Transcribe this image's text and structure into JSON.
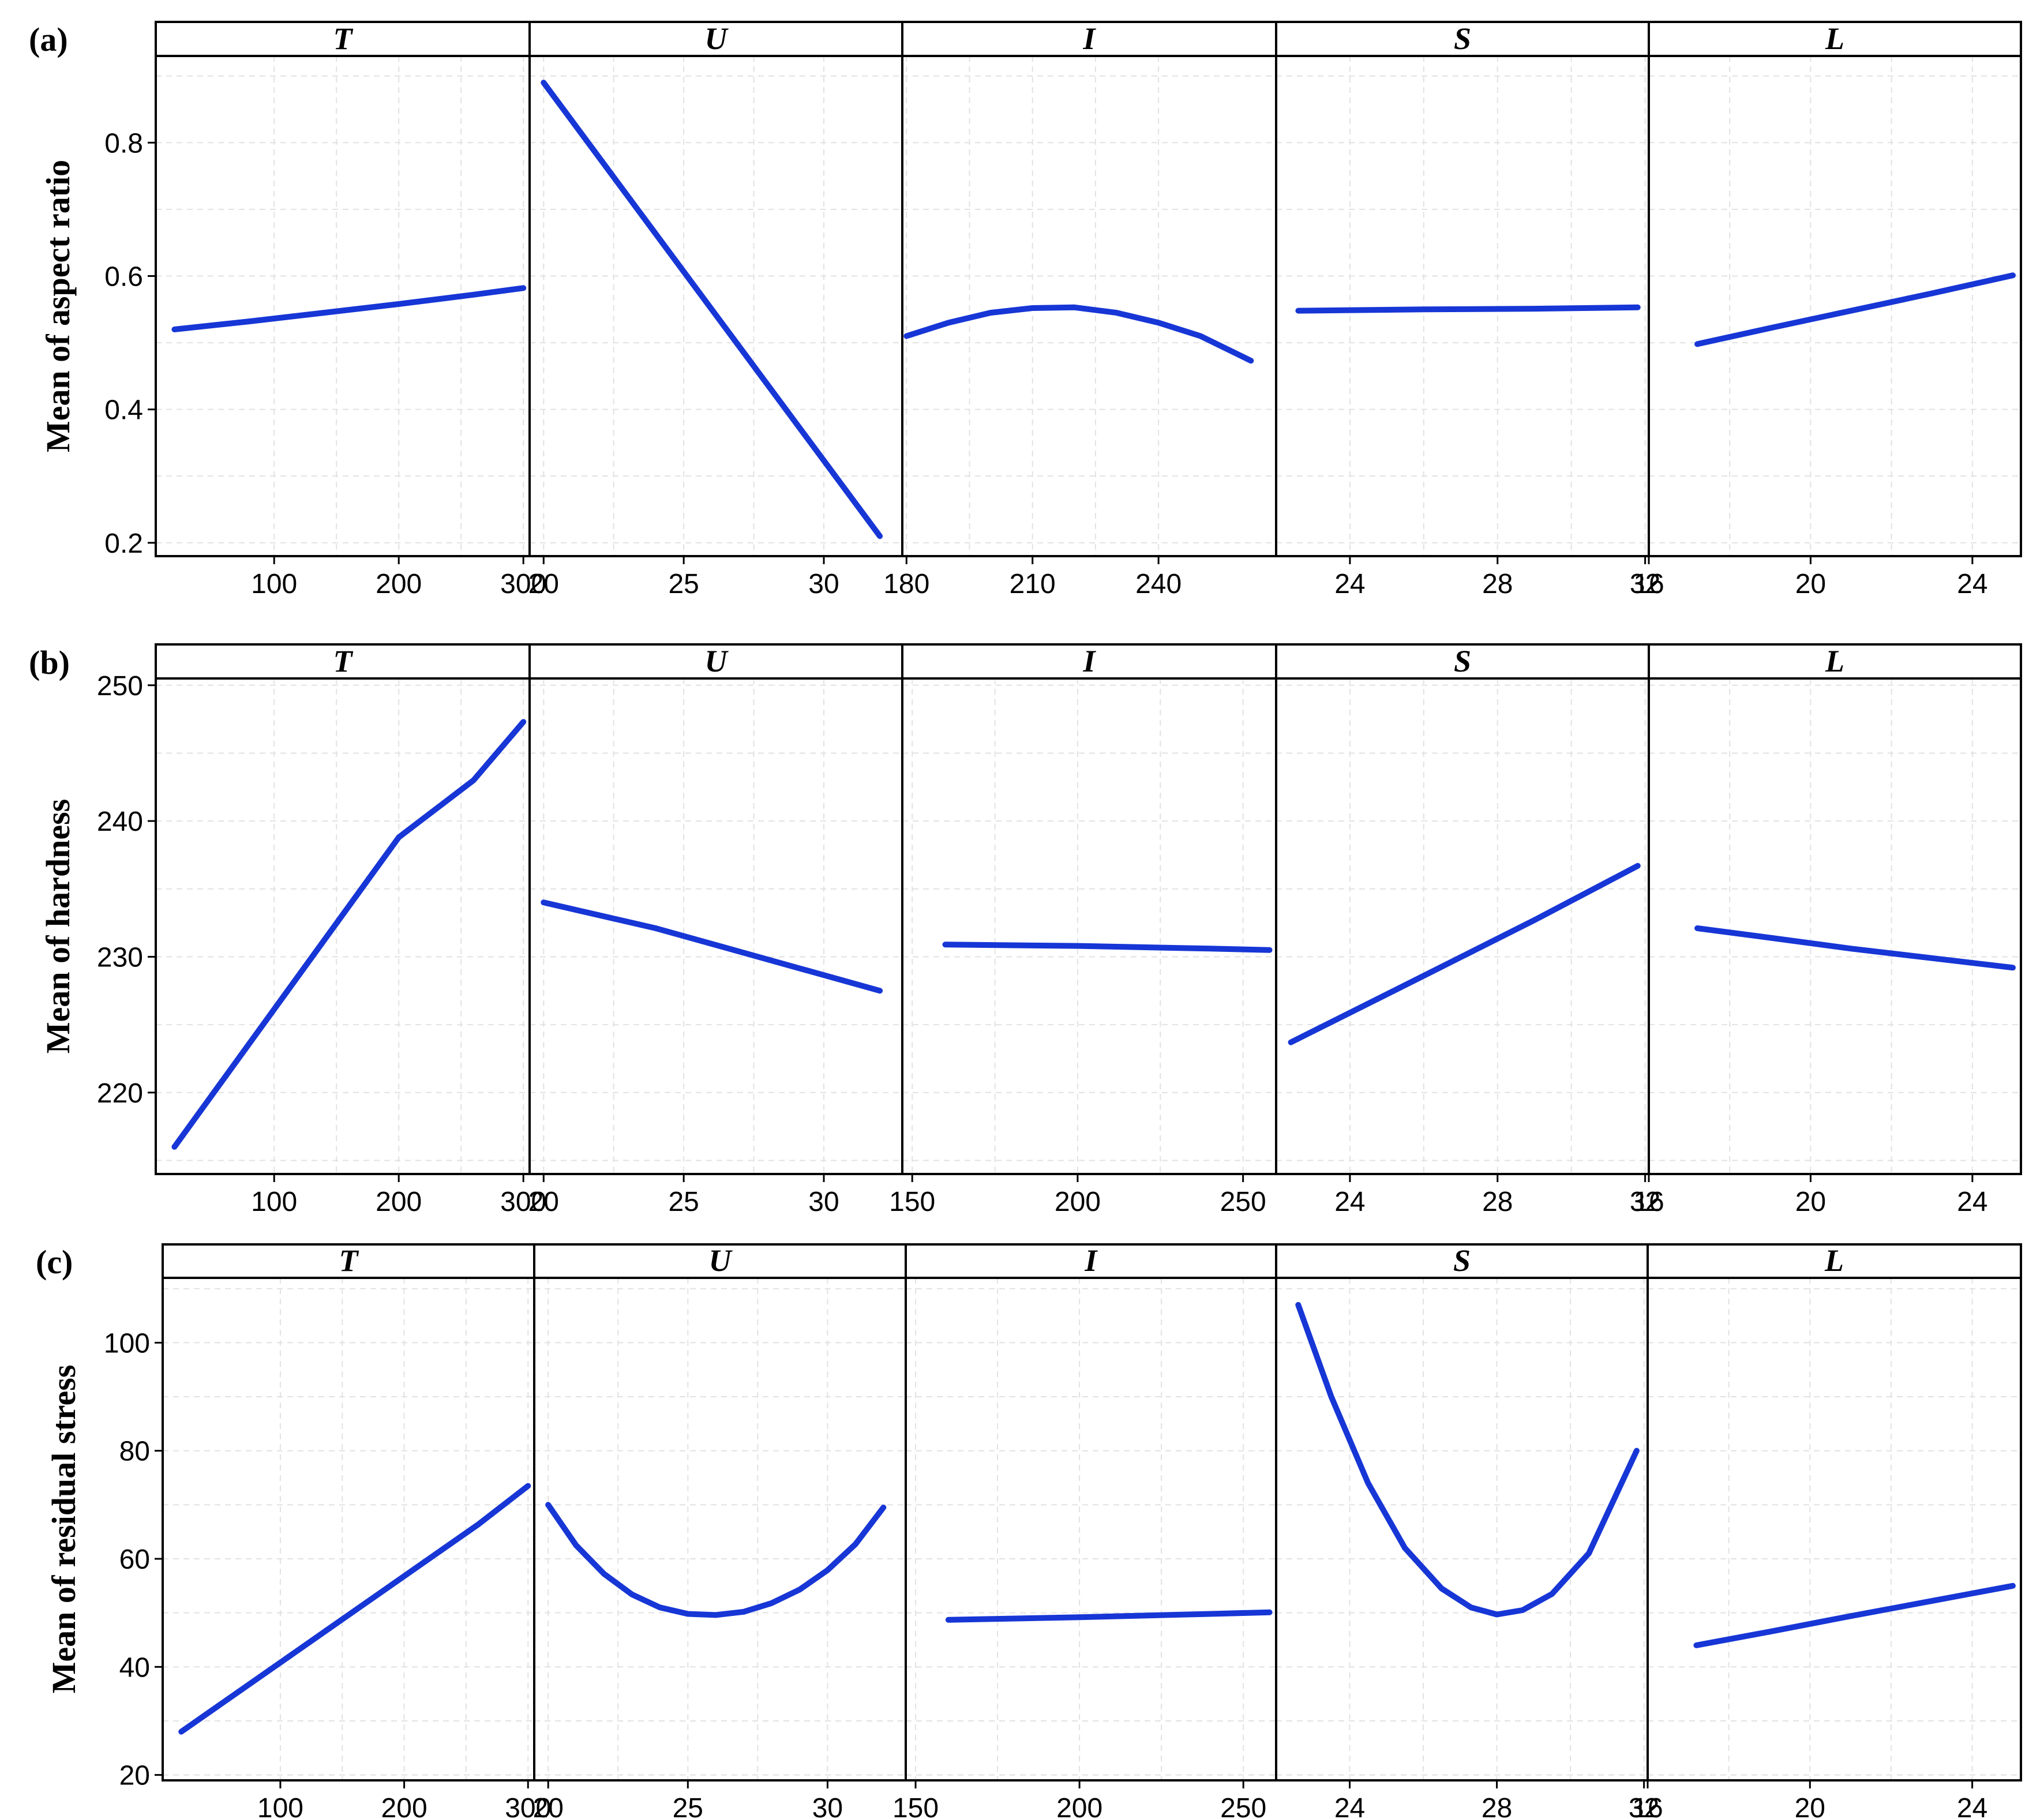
{
  "chart_data": [
    {
      "panel": "(a)",
      "type": "line",
      "ylabel": "Mean of aspect ratio",
      "ylim": [
        0.18,
        0.93
      ],
      "yticks": [
        0.2,
        0.4,
        0.6,
        0.8
      ],
      "ytick_labels": [
        "0.2",
        "0.4",
        "0.6",
        "0.8"
      ],
      "color": "#1736d6",
      "facets": [
        {
          "label": "T",
          "xlim": [
            5,
            305
          ],
          "xticks": [
            100,
            200,
            300
          ],
          "xtick_labels": [
            "100",
            "200",
            "300"
          ],
          "x": [
            20,
            80,
            140,
            200,
            260,
            300
          ],
          "y": [
            0.52,
            0.532,
            0.545,
            0.558,
            0.572,
            0.582
          ]
        },
        {
          "label": "U",
          "xlim": [
            19.5,
            32.8
          ],
          "xticks": [
            20,
            25,
            30
          ],
          "xtick_labels": [
            "20",
            "25",
            "30"
          ],
          "x": [
            20,
            23,
            26,
            29,
            32
          ],
          "y": [
            0.89,
            0.72,
            0.55,
            0.38,
            0.21
          ]
        },
        {
          "label": "I",
          "xlim": [
            179,
            268
          ],
          "xticks": [
            180,
            210,
            240
          ],
          "xtick_labels": [
            "180",
            "210",
            "240"
          ],
          "x": [
            180,
            190,
            200,
            210,
            220,
            230,
            240,
            250,
            262
          ],
          "y": [
            0.51,
            0.53,
            0.545,
            0.552,
            0.553,
            0.545,
            0.53,
            0.51,
            0.473
          ]
        },
        {
          "label": "S",
          "xlim": [
            22,
            32.1
          ],
          "xticks": [
            24,
            28,
            32
          ],
          "xtick_labels": [
            "24",
            "28",
            "32"
          ],
          "x": [
            22.6,
            26,
            29,
            31.8
          ],
          "y": [
            0.548,
            0.55,
            0.551,
            0.553
          ]
        },
        {
          "label": "L",
          "xlim": [
            16,
            25.2
          ],
          "xticks": [
            16,
            20,
            24
          ],
          "xtick_labels": [
            "16",
            "20",
            "24"
          ],
          "x": [
            17.2,
            19,
            21,
            23,
            25
          ],
          "y": [
            0.498,
            0.522,
            0.548,
            0.574,
            0.601
          ]
        }
      ]
    },
    {
      "panel": "(b)",
      "type": "line",
      "ylabel": "Mean of hardness",
      "ylim": [
        214,
        250.5
      ],
      "yticks": [
        220,
        230,
        240,
        250
      ],
      "ytick_labels": [
        "220",
        "230",
        "240",
        "250"
      ],
      "color": "#1736d6",
      "facets": [
        {
          "label": "T",
          "xlim": [
            5,
            305
          ],
          "xticks": [
            100,
            200,
            300
          ],
          "xtick_labels": [
            "100",
            "200",
            "300"
          ],
          "x": [
            20,
            80,
            140,
            200,
            260,
            300
          ],
          "y": [
            216,
            223.6,
            231.2,
            238.8,
            243,
            247.3
          ]
        },
        {
          "label": "U",
          "xlim": [
            19.5,
            32.8
          ],
          "xticks": [
            20,
            25,
            30
          ],
          "xtick_labels": [
            "20",
            "25",
            "30"
          ],
          "x": [
            20,
            24,
            28,
            32
          ],
          "y": [
            234,
            232.1,
            229.8,
            227.5
          ]
        },
        {
          "label": "I",
          "xlim": [
            147,
            260
          ],
          "xticks": [
            150,
            200,
            250
          ],
          "xtick_labels": [
            "150",
            "200",
            "250"
          ],
          "x": [
            160,
            200,
            240,
            258
          ],
          "y": [
            230.9,
            230.8,
            230.6,
            230.5
          ]
        },
        {
          "label": "S",
          "xlim": [
            22,
            32.1
          ],
          "xticks": [
            24,
            28,
            32
          ],
          "xtick_labels": [
            "24",
            "28",
            "32"
          ],
          "x": [
            22.4,
            26,
            29,
            31.8
          ],
          "y": [
            223.7,
            228.6,
            232.7,
            236.7
          ]
        },
        {
          "label": "L",
          "xlim": [
            16,
            25.2
          ],
          "xticks": [
            16,
            20,
            24
          ],
          "xtick_labels": [
            "16",
            "20",
            "24"
          ],
          "x": [
            17.2,
            19,
            21,
            23,
            25
          ],
          "y": [
            232.1,
            231.4,
            230.6,
            229.9,
            229.2
          ]
        }
      ]
    },
    {
      "panel": "(c)",
      "type": "line",
      "ylabel": "Mean of residual stress",
      "ylim": [
        19,
        112
      ],
      "yticks": [
        20,
        40,
        60,
        80,
        100
      ],
      "ytick_labels": [
        "20",
        "40",
        "60",
        "80",
        "100"
      ],
      "color": "#1736d6",
      "facets": [
        {
          "label": "T",
          "xlim": [
            5,
            305
          ],
          "xticks": [
            100,
            200,
            300
          ],
          "xtick_labels": [
            "100",
            "200",
            "300"
          ],
          "x": [
            20,
            80,
            140,
            200,
            260,
            300
          ],
          "y": [
            28,
            37.6,
            47.2,
            56.8,
            66.4,
            73.5
          ]
        },
        {
          "label": "U",
          "xlim": [
            19.5,
            32.8
          ],
          "xticks": [
            20,
            25,
            30
          ],
          "xtick_labels": [
            "20",
            "25",
            "30"
          ],
          "x": [
            20,
            21,
            22,
            23,
            24,
            25,
            26,
            27,
            28,
            29,
            30,
            31,
            32
          ],
          "y": [
            70,
            62.5,
            57.2,
            53.4,
            51,
            49.8,
            49.6,
            50.2,
            51.8,
            54.3,
            57.9,
            62.7,
            69.5
          ]
        },
        {
          "label": "I",
          "xlim": [
            147,
            260
          ],
          "xticks": [
            150,
            200,
            250
          ],
          "xtick_labels": [
            "150",
            "200",
            "250"
          ],
          "x": [
            160,
            200,
            240,
            258
          ],
          "y": [
            48.7,
            49.2,
            49.8,
            50.1
          ]
        },
        {
          "label": "S",
          "xlim": [
            22,
            32.1
          ],
          "xticks": [
            24,
            28,
            32
          ],
          "xtick_labels": [
            "24",
            "28",
            "32"
          ],
          "x": [
            22.6,
            23.5,
            24.5,
            25.5,
            26.5,
            27.3,
            28,
            28.7,
            29.5,
            30.5,
            31.8
          ],
          "y": [
            107,
            90,
            74,
            62,
            54.5,
            51,
            49.7,
            50.5,
            53.5,
            61,
            80
          ]
        },
        {
          "label": "L",
          "xlim": [
            16,
            25.2
          ],
          "xticks": [
            16,
            20,
            24
          ],
          "xtick_labels": [
            "16",
            "20",
            "24"
          ],
          "x": [
            17.2,
            19,
            21,
            23,
            25
          ],
          "y": [
            44,
            46.5,
            49.4,
            52.2,
            55
          ]
        }
      ]
    }
  ]
}
